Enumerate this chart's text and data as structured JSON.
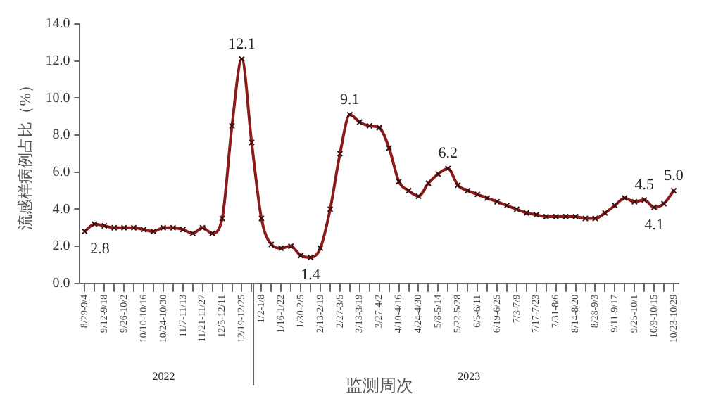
{
  "chart_data": {
    "type": "line",
    "xlabel": "监测周次",
    "ylabel": "流感样病例占比（%）",
    "categories": [
      "8/29-9/4",
      null,
      "9/12-9/18",
      null,
      "9/26-10/2",
      null,
      "10/10-10/16",
      null,
      "10/24-10/30",
      null,
      "11/7-11/13",
      null,
      "11/21-11/27",
      null,
      "12/5-12/11",
      null,
      "12/19-12/25",
      null,
      "1/2-1/8",
      null,
      "1/16-1/22",
      null,
      "1/30-2/5",
      null,
      "2/13-2/19",
      null,
      "2/27-3/5",
      null,
      "3/13-3/19",
      null,
      "3/27-4/2",
      null,
      "4/10-4/16",
      null,
      "4/24-4/30",
      null,
      "5/8-5/14",
      null,
      "5/22-5/28",
      null,
      "6/5-6/11",
      null,
      "6/19-6/25",
      null,
      "7/3-7/9",
      null,
      "7/17-7/23",
      null,
      "7/31-8/6",
      null,
      "8/14-8/20",
      null,
      "8/28-9/3",
      null,
      "9/11-9/17",
      null,
      "9/25-10/1",
      null,
      "10/9-10/15",
      null,
      "10/23-10/29"
    ],
    "series": [
      {
        "color": "#8b1a1a",
        "values": [
          2.8,
          3.2,
          3.1,
          3.0,
          3.0,
          3.0,
          2.9,
          2.8,
          3.0,
          3.0,
          2.9,
          2.7,
          3.0,
          2.7,
          3.5,
          8.5,
          12.1,
          7.6,
          3.5,
          2.1,
          1.9,
          2.0,
          1.5,
          1.4,
          1.9,
          4.0,
          7.0,
          9.1,
          8.7,
          8.5,
          8.4,
          7.3,
          5.5,
          5.0,
          4.7,
          5.4,
          5.9,
          6.2,
          5.3,
          5.0,
          4.8,
          4.6,
          4.4,
          4.2,
          4.0,
          3.8,
          3.7,
          3.6,
          3.6,
          3.6,
          3.6,
          3.5,
          3.5,
          3.8,
          4.2,
          4.6,
          4.4,
          4.5,
          4.1,
          4.3,
          5.0
        ],
        "value_labels": [
          "2.8",
          null,
          null,
          null,
          null,
          null,
          null,
          null,
          null,
          null,
          null,
          null,
          null,
          null,
          null,
          null,
          "12.1",
          null,
          null,
          null,
          null,
          null,
          null,
          "1.4",
          null,
          null,
          null,
          "9.1",
          null,
          null,
          null,
          null,
          null,
          null,
          null,
          null,
          null,
          "6.2",
          null,
          null,
          null,
          null,
          null,
          null,
          null,
          null,
          null,
          null,
          null,
          null,
          null,
          null,
          null,
          null,
          null,
          null,
          null,
          "4.5",
          "4.1",
          null,
          "5.0"
        ]
      }
    ],
    "ylim": [
      0,
      14
    ],
    "yticks": [
      {
        "value": 0,
        "label": "0.0"
      },
      {
        "value": 2,
        "label": "2.0"
      },
      {
        "value": 4,
        "label": "4.0"
      },
      {
        "value": 6,
        "label": "6.0"
      },
      {
        "value": 8,
        "label": "8.0"
      },
      {
        "value": 10,
        "label": "10.0"
      },
      {
        "value": 12,
        "label": "12.0"
      },
      {
        "value": 14,
        "label": "14.0"
      }
    ],
    "annotations": [
      "2022",
      "2023"
    ],
    "marker": "cross",
    "line_style": "solid",
    "grid": false,
    "legend": false
  }
}
